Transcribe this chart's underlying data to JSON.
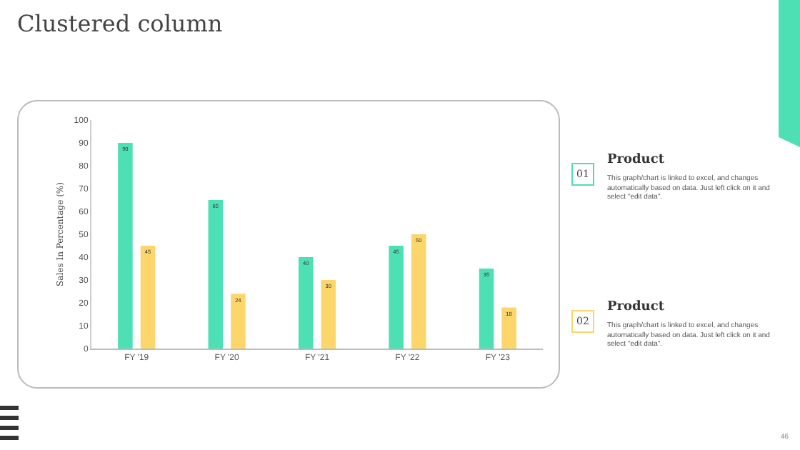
{
  "chart_data": {
    "type": "bar",
    "title": "Clustered column",
    "ylabel": "Sales In Percentage (%)",
    "categories": [
      "FY '19",
      "FY '20",
      "FY '21",
      "FY '22",
      "FY '23"
    ],
    "series": [
      {
        "name": "Product",
        "color": "#4ee0b5",
        "values": [
          90,
          65,
          40,
          45,
          35
        ]
      },
      {
        "name": "Product",
        "color": "#fcd56b",
        "values": [
          45,
          24,
          30,
          50,
          18
        ]
      }
    ],
    "ylim": [
      0,
      100
    ],
    "yticks": [
      0,
      10,
      20,
      30,
      40,
      50,
      60,
      70,
      80,
      90,
      100
    ],
    "grid": false,
    "data_labels": true,
    "legend": "right",
    "annotations": [
      "01",
      "This graph/chart is linked to excel, and changes automatically based on data. Just left click on it and select \"edit data\".",
      "02",
      "This graph/chart is linked to excel, and changes automatically based on data. Just left click on it and select \"edit data\".",
      "46"
    ]
  }
}
